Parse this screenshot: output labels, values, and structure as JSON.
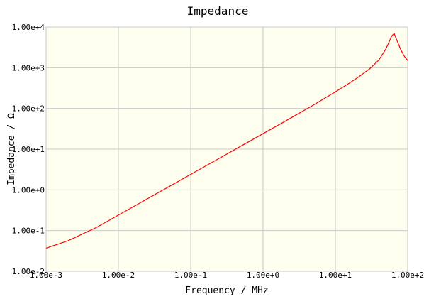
{
  "chart_data": {
    "type": "line",
    "title": "Impedance",
    "xlabel": "Frequency / MHz",
    "ylabel": "Impedance / Ω",
    "x_scale": "log",
    "y_scale": "log",
    "xlim": [
      0.001,
      100
    ],
    "ylim": [
      0.01,
      10000
    ],
    "x_ticks": [
      0.001,
      0.01,
      0.1,
      1,
      10,
      100
    ],
    "x_tick_labels": [
      "1.00e-3",
      "1.00e-2",
      "1.00e-1",
      "1.00e+0",
      "1.00e+1",
      "1.00e+2"
    ],
    "y_ticks": [
      0.01,
      0.1,
      1,
      10,
      100,
      1000,
      10000
    ],
    "y_tick_labels": [
      "1.00e-2",
      "1.00e-1",
      "1.00e+0",
      "1.00e+1",
      "1.00e+2",
      "1.00e+3",
      "1.00e+4"
    ],
    "grid": true,
    "series": [
      {
        "color": "#ff0000",
        "x": [
          0.001,
          0.002,
          0.005,
          0.01,
          0.02,
          0.05,
          0.1,
          0.2,
          0.5,
          1,
          2,
          5,
          10,
          15,
          20,
          30,
          40,
          50,
          55,
          60,
          65,
          70,
          80,
          90,
          100
        ],
        "y": [
          0.037,
          0.056,
          0.12,
          0.24,
          0.48,
          1.2,
          2.4,
          4.8,
          12,
          24,
          48,
          122,
          255,
          400,
          560,
          950,
          1550,
          2900,
          4200,
          6000,
          6900,
          5000,
          2800,
          1900,
          1500
        ]
      }
    ]
  },
  "colors": {
    "plot_background": "#fffff0",
    "grid": "#c8c8c8",
    "frame": "#b4b4b4",
    "line": "#ff0000"
  }
}
